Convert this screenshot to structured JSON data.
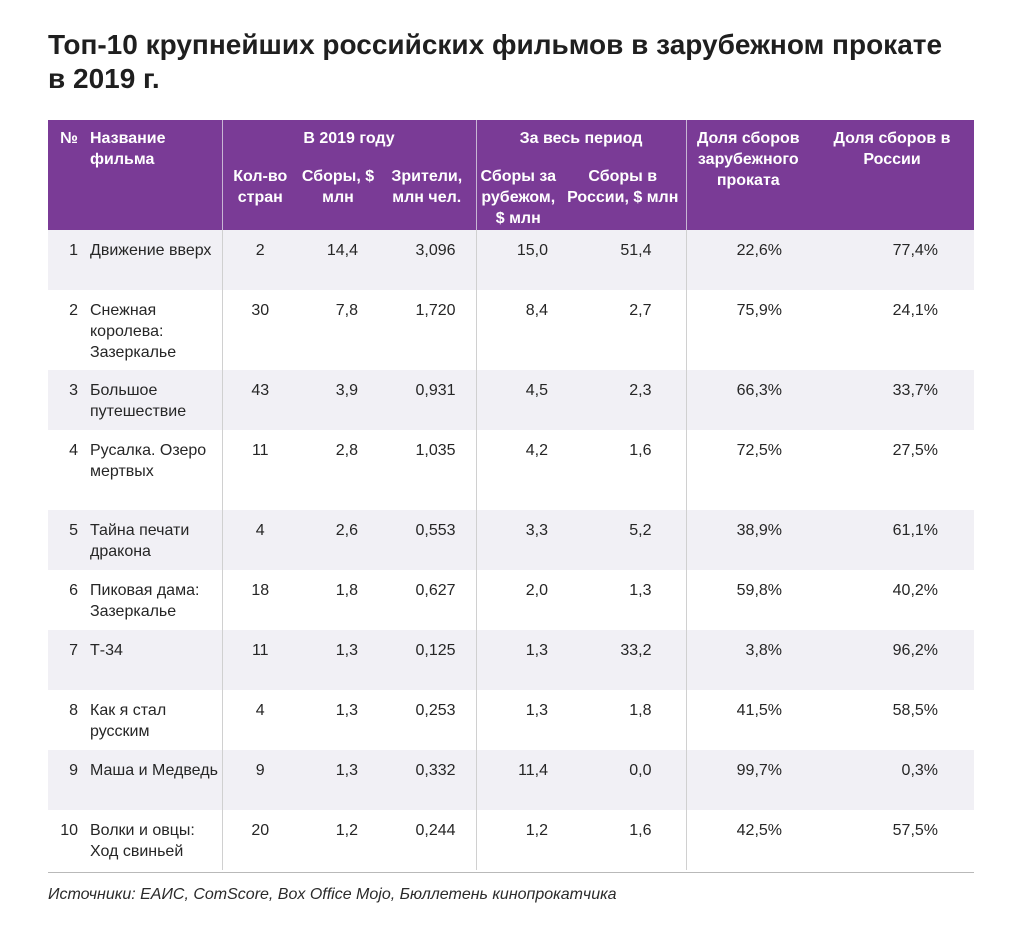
{
  "title": "Топ-10 крупнейших российских фильмов в зарубежном прокате в 2019 г.",
  "headers": {
    "no": "№",
    "name": "Название фильма",
    "group_2019": "В 2019 году",
    "countries": "Кол-во стран",
    "gross_2019": "Сборы, $ млн",
    "viewers": "Зрители, млн чел.",
    "group_total": "За весь период",
    "gross_abroad": "Сборы за рубежом, $ млн",
    "gross_russia": "Сборы в России, $ млн",
    "share_abroad": "Доля сборов зарубежного проката",
    "share_russia": "Доля сборов в России"
  },
  "chart_data": {
    "type": "table",
    "title": "Топ-10 крупнейших российских фильмов в зарубежном прокате в 2019 г.",
    "columns": [
      "№",
      "Название фильма",
      "Кол-во стран",
      "Сборы, $ млн",
      "Зрители, млн чел.",
      "Сборы за рубежом, $ млн",
      "Сборы в России, $ млн",
      "Доля сборов зарубежного проката",
      "Доля сборов в России"
    ],
    "rows": [
      {
        "no": "1",
        "name": "Движение вверх",
        "countries": "2",
        "gross_2019": "14,4",
        "viewers": "3,096",
        "gross_abroad": "15,0",
        "gross_russia": "51,4",
        "share_abroad": "22,6%",
        "share_russia": "77,4%"
      },
      {
        "no": "2",
        "name": "Снежная королева: Зазеркалье",
        "countries": "30",
        "gross_2019": "7,8",
        "viewers": "1,720",
        "gross_abroad": "8,4",
        "gross_russia": "2,7",
        "share_abroad": "75,9%",
        "share_russia": "24,1%"
      },
      {
        "no": "3",
        "name": "Большое путешествие",
        "countries": "43",
        "gross_2019": "3,9",
        "viewers": "0,931",
        "gross_abroad": "4,5",
        "gross_russia": "2,3",
        "share_abroad": "66,3%",
        "share_russia": "33,7%"
      },
      {
        "no": "4",
        "name": "Русалка. Озеро мертвых",
        "countries": "11",
        "gross_2019": "2,8",
        "viewers": "1,035",
        "gross_abroad": "4,2",
        "gross_russia": "1,6",
        "share_abroad": "72,5%",
        "share_russia": "27,5%"
      },
      {
        "no": "5",
        "name": "Тайна печати дракона",
        "countries": "4",
        "gross_2019": "2,6",
        "viewers": "0,553",
        "gross_abroad": "3,3",
        "gross_russia": "5,2",
        "share_abroad": "38,9%",
        "share_russia": "61,1%"
      },
      {
        "no": "6",
        "name": "Пиковая дама: Зазеркалье",
        "countries": "18",
        "gross_2019": "1,8",
        "viewers": "0,627",
        "gross_abroad": "2,0",
        "gross_russia": "1,3",
        "share_abroad": "59,8%",
        "share_russia": "40,2%"
      },
      {
        "no": "7",
        "name": "Т-34",
        "countries": "11",
        "gross_2019": "1,3",
        "viewers": "0,125",
        "gross_abroad": "1,3",
        "gross_russia": "33,2",
        "share_abroad": "3,8%",
        "share_russia": "96,2%"
      },
      {
        "no": "8",
        "name": "Как я стал русским",
        "countries": "4",
        "gross_2019": "1,3",
        "viewers": "0,253",
        "gross_abroad": "1,3",
        "gross_russia": "1,8",
        "share_abroad": "41,5%",
        "share_russia": "58,5%"
      },
      {
        "no": "9",
        "name": "Маша и Медведь",
        "countries": "9",
        "gross_2019": "1,3",
        "viewers": "0,332",
        "gross_abroad": "11,4",
        "gross_russia": "0,0",
        "share_abroad": "99,7%",
        "share_russia": "0,3%"
      },
      {
        "no": "10",
        "name": "Волки и овцы: Ход свиньей",
        "countries": "20",
        "gross_2019": "1,2",
        "viewers": "0,244",
        "gross_abroad": "1,2",
        "gross_russia": "1,6",
        "share_abroad": "42,5%",
        "share_russia": "57,5%"
      }
    ]
  },
  "source": "Источники: ЕАИС, ComScore, Box Office Mojo, Бюллетень кинопрокатчика",
  "colors": {
    "header_bg": "#7a3b96",
    "stripe": "#f1f0f5"
  }
}
